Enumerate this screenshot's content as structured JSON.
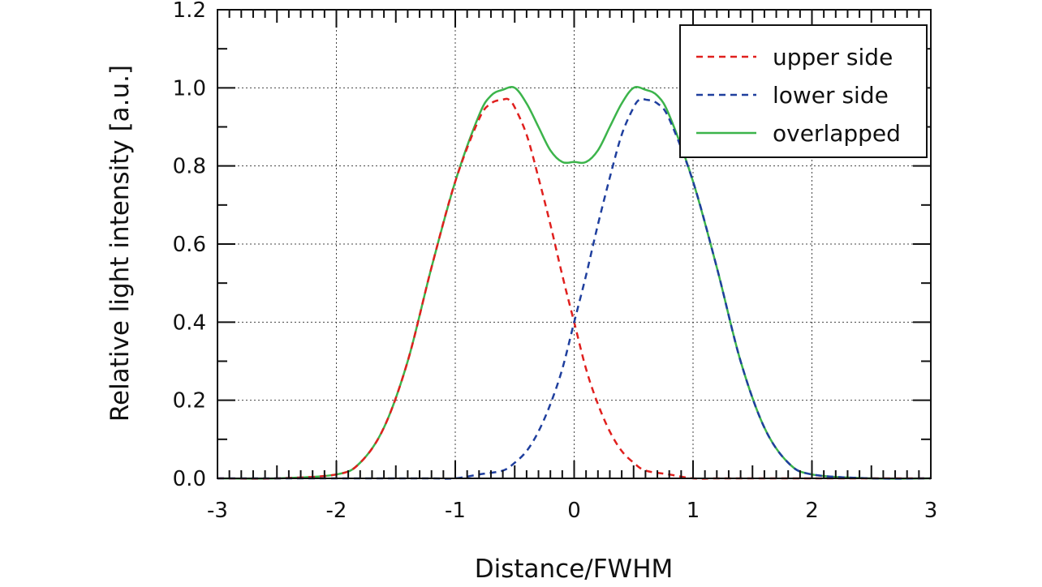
{
  "chart_data": {
    "type": "line",
    "title": "",
    "xlabel": "Distance/FWHM",
    "ylabel": "Relative light intensity [a.u.]",
    "xlim": [
      -3,
      3
    ],
    "ylim": [
      0,
      1.2
    ],
    "grid": true,
    "legend_position": "top-right",
    "x_ticks": [
      "-3",
      "-2",
      "-1",
      "0",
      "1",
      "2",
      "3"
    ],
    "y_ticks": [
      "0.0",
      "0.2",
      "0.4",
      "0.6",
      "0.8",
      "1.0",
      "1.2"
    ],
    "series": [
      {
        "name": "upper side",
        "color": "#e0201e",
        "style": "dashed",
        "x": [
          -3,
          -2.5,
          -2,
          -1.8,
          -1.6,
          -1.4,
          -1.2,
          -1.0,
          -0.8,
          -0.7,
          -0.6,
          -0.55,
          -0.5,
          -0.4,
          -0.3,
          -0.2,
          -0.1,
          0,
          0.1,
          0.2,
          0.3,
          0.4,
          0.5,
          0.6,
          0.8,
          1.0,
          1.2,
          1.5,
          2,
          2.5,
          3
        ],
        "y": [
          0.0,
          0.0,
          0.01,
          0.04,
          0.13,
          0.3,
          0.54,
          0.76,
          0.92,
          0.96,
          0.97,
          0.97,
          0.95,
          0.88,
          0.77,
          0.65,
          0.52,
          0.4,
          0.28,
          0.19,
          0.12,
          0.07,
          0.04,
          0.02,
          0.01,
          0.0,
          0.0,
          0.0,
          0.0,
          0.0,
          0.0
        ]
      },
      {
        "name": "lower side",
        "color": "#1f3f9e",
        "style": "dashed",
        "x": [
          -3,
          -2.5,
          -2,
          -1.5,
          -1.2,
          -1.0,
          -0.8,
          -0.6,
          -0.5,
          -0.4,
          -0.3,
          -0.2,
          -0.1,
          0,
          0.1,
          0.2,
          0.3,
          0.4,
          0.5,
          0.55,
          0.6,
          0.7,
          0.8,
          1.0,
          1.2,
          1.4,
          1.6,
          1.8,
          2,
          2.5,
          3
        ],
        "y": [
          0.0,
          0.0,
          0.0,
          0.0,
          0.0,
          0.0,
          0.01,
          0.02,
          0.04,
          0.07,
          0.12,
          0.19,
          0.28,
          0.4,
          0.52,
          0.65,
          0.77,
          0.88,
          0.95,
          0.97,
          0.97,
          0.96,
          0.92,
          0.76,
          0.54,
          0.3,
          0.13,
          0.04,
          0.01,
          0.0,
          0.0
        ]
      },
      {
        "name": "overlapped",
        "color": "#3cb44b",
        "style": "solid",
        "x": [
          -3,
          -2.5,
          -2,
          -1.8,
          -1.6,
          -1.4,
          -1.2,
          -1.0,
          -0.8,
          -0.7,
          -0.6,
          -0.5,
          -0.4,
          -0.3,
          -0.2,
          -0.1,
          0,
          0.1,
          0.2,
          0.3,
          0.4,
          0.5,
          0.6,
          0.7,
          0.8,
          1.0,
          1.2,
          1.4,
          1.6,
          1.8,
          2,
          2.5,
          3
        ],
        "y": [
          0.0,
          0.0,
          0.01,
          0.04,
          0.13,
          0.3,
          0.54,
          0.76,
          0.93,
          0.98,
          0.995,
          1.0,
          0.96,
          0.9,
          0.84,
          0.81,
          0.81,
          0.81,
          0.84,
          0.9,
          0.96,
          1.0,
          0.995,
          0.98,
          0.93,
          0.76,
          0.54,
          0.3,
          0.13,
          0.04,
          0.01,
          0.0,
          0.0
        ]
      }
    ]
  }
}
